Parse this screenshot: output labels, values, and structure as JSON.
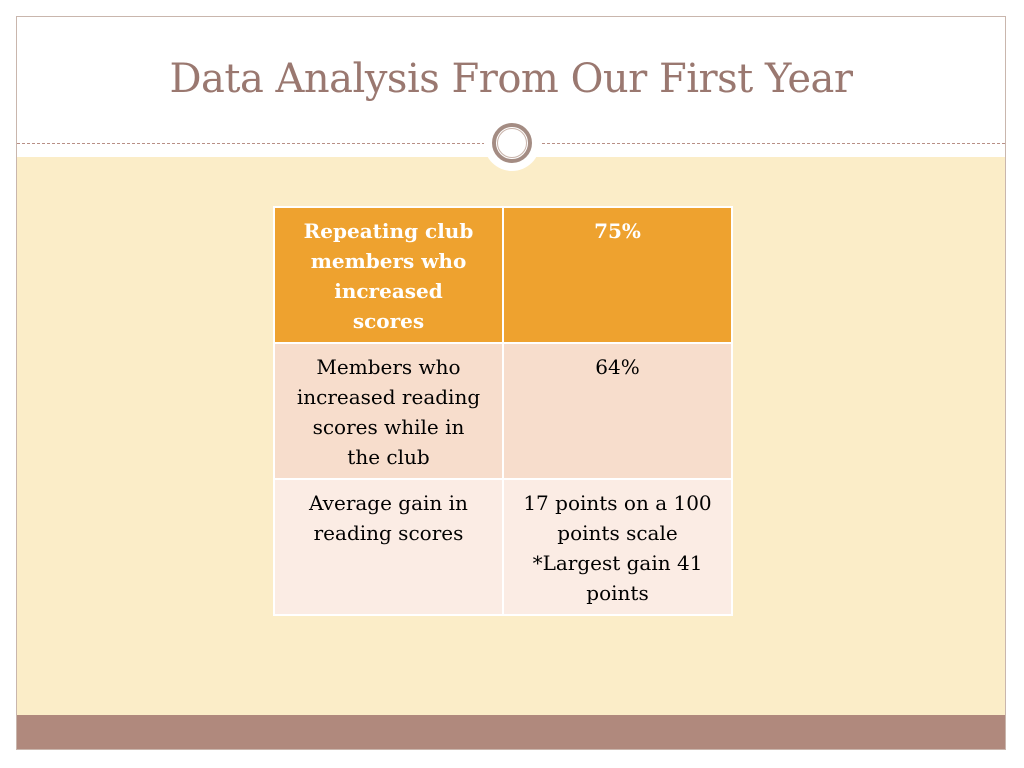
{
  "slide": {
    "title": "Data Analysis From Our First Year"
  },
  "table": {
    "rows": [
      {
        "label_lines": [
          "Repeating club",
          "members who",
          "increased",
          "scores"
        ],
        "value_lines": [
          "75%"
        ]
      },
      {
        "label_lines": [
          "Members who",
          "increased reading",
          "scores while in",
          "the club"
        ],
        "value_lines": [
          "64%"
        ]
      },
      {
        "label_lines": [
          "Average gain in",
          "reading scores"
        ],
        "value_lines": [
          "17 points on a 100",
          "points scale",
          "*Largest gain 41",
          "points"
        ]
      }
    ]
  },
  "colors": {
    "title": "#9a7870",
    "header_row": "#eea22f",
    "row_odd": "#f7ddcc",
    "row_even": "#fbece4",
    "content_background": "#fbedc8",
    "bottom_band": "#b0897d"
  }
}
